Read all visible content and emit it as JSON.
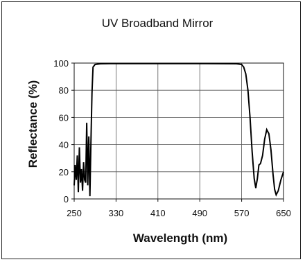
{
  "chart_data": {
    "type": "line",
    "title": "UV Broadband Mirror",
    "xlabel": "Wavelength (nm)",
    "ylabel": "Reflectance (%)",
    "xlim": [
      250,
      650
    ],
    "ylim": [
      0,
      100
    ],
    "x_ticks": [
      "250",
      "330",
      "410",
      "490",
      "570",
      "650"
    ],
    "y_ticks": [
      "0",
      "20",
      "40",
      "60",
      "80",
      "100"
    ],
    "grid": true,
    "legend": "none",
    "series": [
      {
        "color": "#000000",
        "points": [
          [
            250,
            10
          ],
          [
            252,
            25
          ],
          [
            254,
            14
          ],
          [
            256,
            32
          ],
          [
            258,
            5
          ],
          [
            260,
            38
          ],
          [
            262,
            12
          ],
          [
            264,
            22
          ],
          [
            266,
            6
          ],
          [
            268,
            27
          ],
          [
            270,
            14
          ],
          [
            272,
            12
          ],
          [
            274,
            56
          ],
          [
            276,
            10
          ],
          [
            278,
            46
          ],
          [
            280,
            2
          ],
          [
            282,
            42
          ],
          [
            284,
            78
          ],
          [
            286,
            97
          ],
          [
            288,
            98
          ],
          [
            290,
            99
          ],
          [
            300,
            99.5
          ],
          [
            320,
            99.6
          ],
          [
            400,
            99.6
          ],
          [
            500,
            99.6
          ],
          [
            560,
            99.5
          ],
          [
            570,
            99
          ],
          [
            574,
            97
          ],
          [
            578,
            92
          ],
          [
            582,
            80
          ],
          [
            586,
            60
          ],
          [
            590,
            35
          ],
          [
            594,
            15
          ],
          [
            597,
            8
          ],
          [
            600,
            15
          ],
          [
            603,
            25
          ],
          [
            606,
            26
          ],
          [
            610,
            32
          ],
          [
            614,
            44
          ],
          [
            618,
            51
          ],
          [
            622,
            48
          ],
          [
            626,
            36
          ],
          [
            630,
            18
          ],
          [
            633,
            7
          ],
          [
            636,
            3
          ],
          [
            640,
            6
          ],
          [
            645,
            14
          ],
          [
            650,
            20
          ]
        ]
      }
    ]
  }
}
